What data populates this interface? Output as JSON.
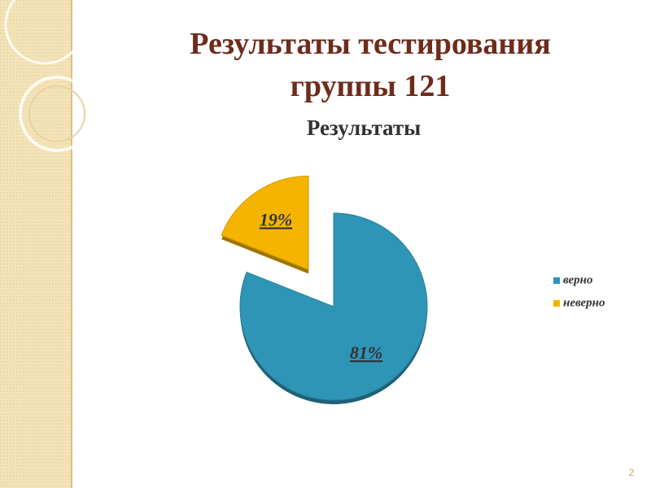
{
  "title": "Результаты тестирования группы 121",
  "page_number": "2",
  "chart_data": {
    "type": "pie",
    "title": "Результаты",
    "categories": [
      "верно",
      "неверно"
    ],
    "values": [
      81,
      19
    ],
    "value_labels": [
      "81%",
      "19%"
    ],
    "colors": [
      "#2e95b6",
      "#f4b400"
    ],
    "legend": "right"
  }
}
